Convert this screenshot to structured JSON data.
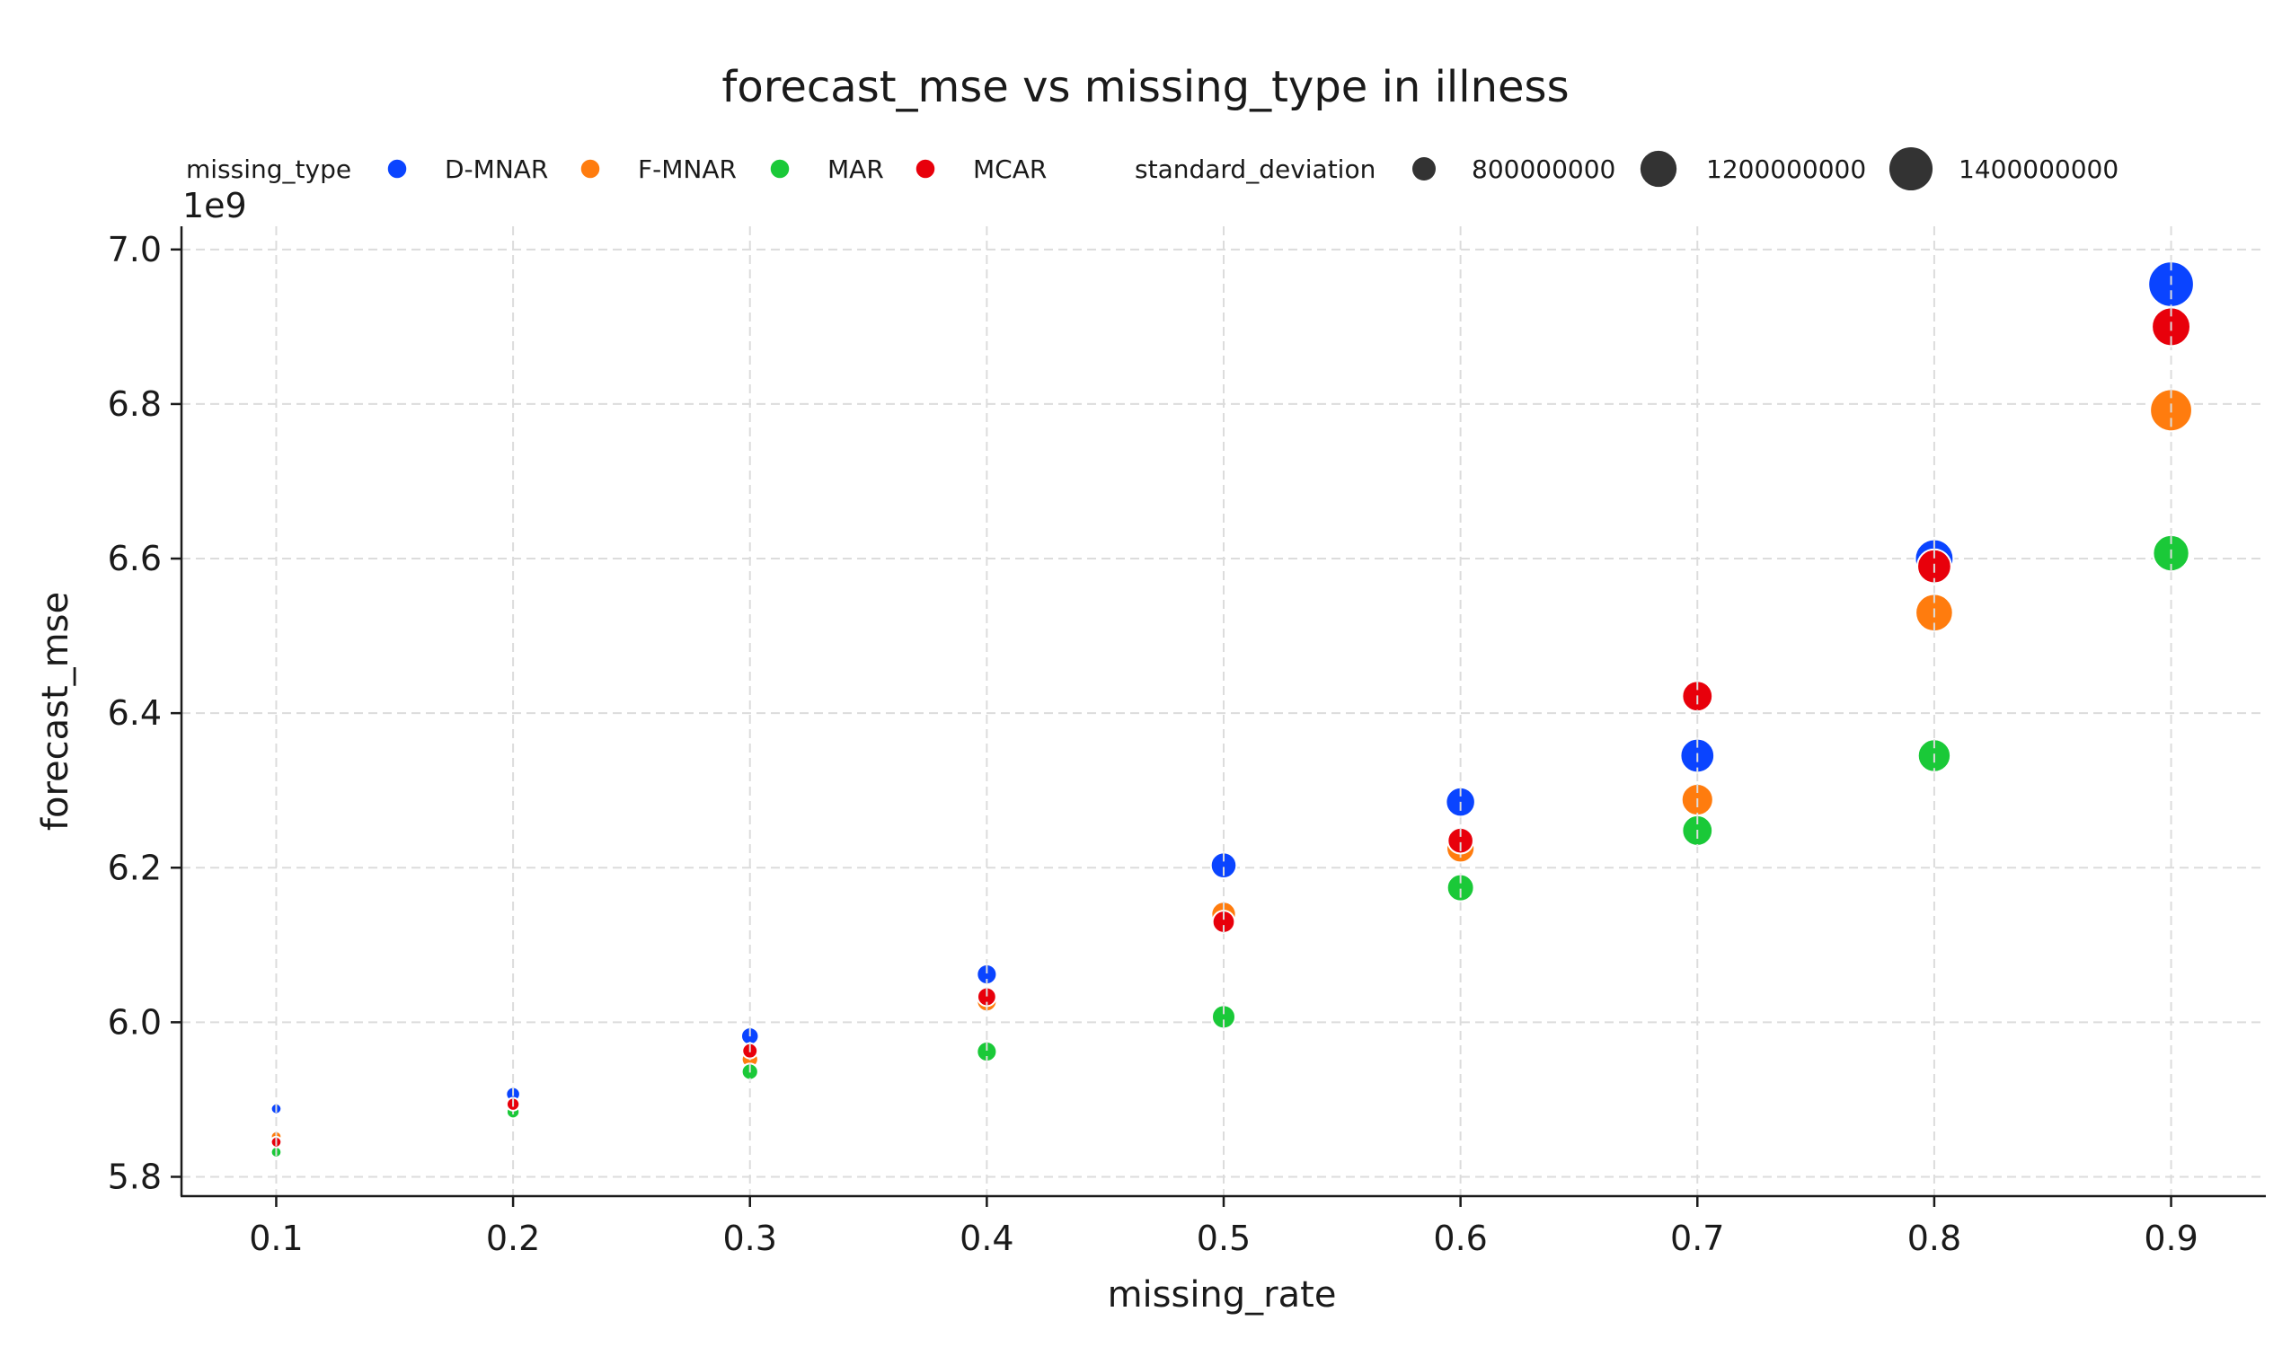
{
  "chart_data": {
    "type": "scatter",
    "title": "forecast_mse vs missing_type in illness",
    "xlabel": "missing_rate",
    "ylabel": "forecast_mse",
    "y_offset_label": "1e9",
    "xlim": [
      0.06,
      0.94
    ],
    "ylim": [
      5.775,
      7.03
    ],
    "x_ticks": [
      0.1,
      0.2,
      0.3,
      0.4,
      0.5,
      0.6,
      0.7,
      0.8,
      0.9
    ],
    "x_tick_labels": [
      "0.1",
      "0.2",
      "0.3",
      "0.4",
      "0.5",
      "0.6",
      "0.7",
      "0.8",
      "0.9"
    ],
    "y_ticks": [
      5.8,
      6.0,
      6.2,
      6.4,
      6.6,
      6.8,
      7.0
    ],
    "y_tick_labels": [
      "5.8",
      "6.0",
      "6.2",
      "6.4",
      "6.6",
      "6.8",
      "7.0"
    ],
    "grid": true,
    "legend_position": "top",
    "hue_legend_title": "missing_type",
    "size_legend_title": "standard_deviation",
    "size_legend": [
      {
        "label": "800000000",
        "level": 1.0
      },
      {
        "label": "1200000000",
        "level": 1.55
      },
      {
        "label": "1400000000",
        "level": 1.85
      }
    ],
    "marker_color": "#333333",
    "x": [
      0.1,
      0.2,
      0.3,
      0.4,
      0.5,
      0.6,
      0.7,
      0.8,
      0.9
    ],
    "series": [
      {
        "name": "D-MNAR",
        "color": "#0a44ff",
        "values": [
          5.888,
          5.907,
          5.982,
          6.062,
          6.203,
          6.285,
          6.345,
          6.6,
          6.955
        ],
        "size_levels": [
          0.45,
          0.6,
          0.75,
          0.85,
          1.1,
          1.25,
          1.45,
          1.65,
          1.95
        ]
      },
      {
        "name": "F-MNAR",
        "color": "#ff7c0e",
        "values": [
          5.852,
          5.893,
          5.952,
          6.027,
          6.14,
          6.225,
          6.288,
          6.53,
          6.792
        ],
        "size_levels": [
          0.45,
          0.55,
          0.7,
          0.85,
          1.05,
          1.2,
          1.35,
          1.6,
          1.8
        ]
      },
      {
        "name": "MAR",
        "color": "#1ac938",
        "values": [
          5.832,
          5.884,
          5.936,
          5.962,
          6.007,
          6.174,
          6.248,
          6.345,
          6.607
        ],
        "size_levels": [
          0.45,
          0.55,
          0.7,
          0.85,
          1.0,
          1.15,
          1.3,
          1.4,
          1.55
        ]
      },
      {
        "name": "MCAR",
        "color": "#e8000b",
        "values": [
          5.845,
          5.894,
          5.963,
          6.033,
          6.13,
          6.235,
          6.422,
          6.59,
          6.9
        ],
        "size_levels": [
          0.45,
          0.55,
          0.65,
          0.8,
          0.95,
          1.1,
          1.3,
          1.45,
          1.65
        ]
      }
    ]
  }
}
